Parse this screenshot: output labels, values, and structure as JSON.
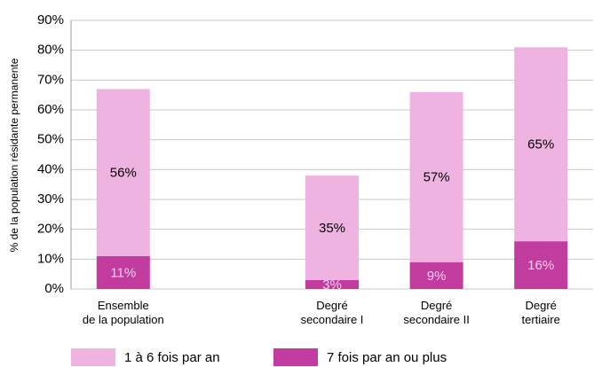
{
  "chart_data": {
    "type": "stacked_bar",
    "y_label": "% de la population résidante permanente",
    "categories": [
      "Ensemble\nde la population",
      null,
      "Degré\nsecondaire I",
      "Degré\nsecondaire II",
      "Degré\ntertiaire"
    ],
    "series": [
      {
        "name": "7 fois par an ou plus",
        "color": "#c23c9f",
        "label_color": "#f7d0ec",
        "values": [
          11,
          null,
          3,
          9,
          16
        ],
        "value_labels": [
          "11%",
          null,
          "3%",
          "9%",
          "16%"
        ]
      },
      {
        "name": "1 à 6 fois par an",
        "color": "#efb3e1",
        "label_color": "#000000",
        "values": [
          56,
          null,
          35,
          57,
          65
        ],
        "value_labels": [
          "56%",
          null,
          "35%",
          "57%",
          "65%"
        ]
      }
    ],
    "ylim": [
      0,
      90
    ],
    "yticks": [
      {
        "value": 0,
        "label": "0%"
      },
      {
        "value": 10,
        "label": "10%"
      },
      {
        "value": 20,
        "label": "20%"
      },
      {
        "value": 30,
        "label": "30%"
      },
      {
        "value": 40,
        "label": "40%"
      },
      {
        "value": 50,
        "label": "50%"
      },
      {
        "value": 60,
        "label": "60%"
      },
      {
        "value": 70,
        "label": "70%"
      },
      {
        "value": 80,
        "label": "80%"
      },
      {
        "value": 90,
        "label": "90%"
      }
    ],
    "grid": true
  }
}
